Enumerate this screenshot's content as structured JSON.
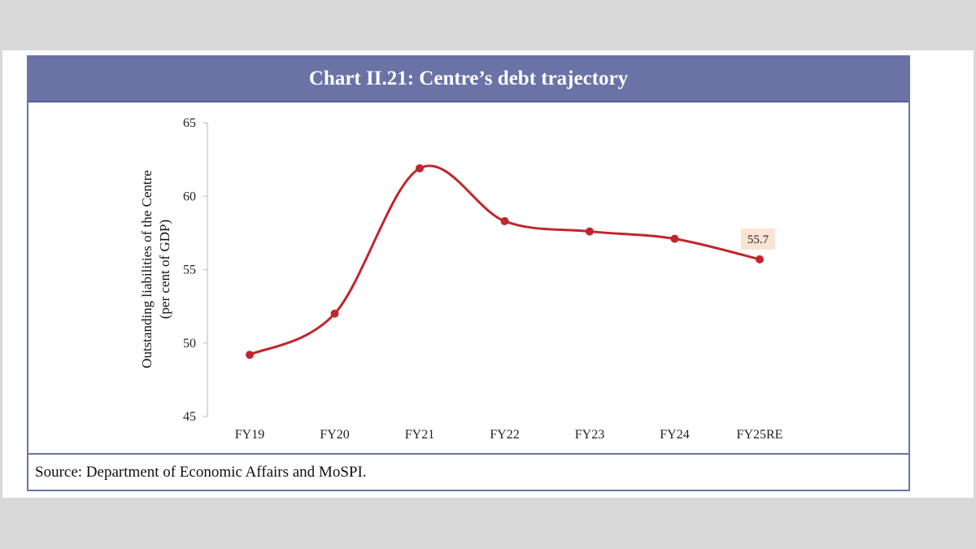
{
  "chart_data": {
    "type": "line",
    "title": "Chart II.21: Centre’s debt trajectory",
    "ylabel_line1": "Outstanding liabilities of the Centre",
    "ylabel_line2": "(per cent of GDP)",
    "xlabel": "",
    "categories": [
      "FY19",
      "FY20",
      "FY21",
      "FY22",
      "FY23",
      "FY24",
      "FY25RE"
    ],
    "series": [
      {
        "values": [
          49.2,
          52.0,
          61.9,
          58.3,
          57.6,
          57.1,
          55.7
        ],
        "color": "#c0262d"
      }
    ],
    "ylim": [
      45,
      65
    ],
    "yticks": [
      45,
      50,
      55,
      60,
      65
    ],
    "data_labels": [
      {
        "index": 6,
        "text": "55.7",
        "background": "#fbe3d3"
      }
    ],
    "grid": false,
    "legend": "none"
  },
  "source": "Source: Department of Economic Affairs and MoSPI."
}
